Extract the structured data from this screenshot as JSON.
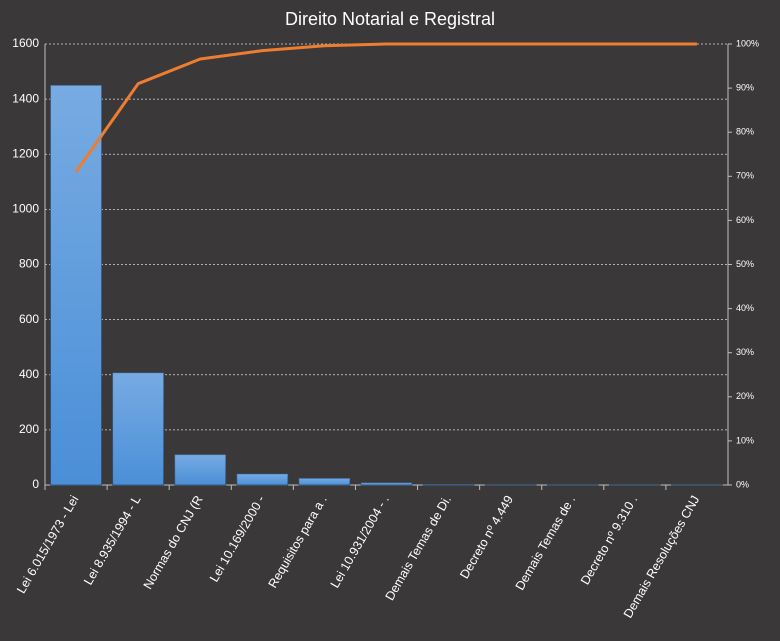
{
  "chart_data": {
    "type": "bar",
    "title": "Direito Notarial e Registral",
    "categories": [
      "Lei 6.015/1973 - Lei",
      "Lei 8.935/1994 - L",
      "Normas do CNJ (R",
      "Lei 10.169/2000 -",
      "Requisitos para a .",
      "Lei 10.931/2004 - .",
      "Demais Temas de Di.",
      "Decreto nº 4.449",
      "Demais Temas de .",
      "Decreto nº 9.310 .",
      "Demais Resoluções CNJ"
    ],
    "series": [
      {
        "type": "bar",
        "color": "#4a8fd8",
        "values": [
          1450,
          407,
          110,
          40,
          24,
          8,
          2,
          1,
          1,
          1,
          1
        ]
      },
      {
        "type": "line",
        "axis": "y2",
        "color": "#ed7d31",
        "values": [
          71,
          91,
          96.6,
          98.5,
          99.6,
          100,
          100,
          100,
          100,
          100,
          100
        ]
      }
    ],
    "ylim": [
      0,
      1600
    ],
    "yticks": [
      0,
      200,
      400,
      600,
      800,
      1000,
      1200,
      1400,
      1600
    ],
    "y2lim": [
      0,
      100
    ],
    "y2ticks": [
      {
        "value": 0,
        "label": "0%"
      },
      {
        "value": 10,
        "label": "10%"
      },
      {
        "value": 20,
        "label": "20%"
      },
      {
        "value": 30,
        "label": "30%"
      },
      {
        "value": 40,
        "label": "40%"
      },
      {
        "value": 50,
        "label": "50%"
      },
      {
        "value": 60,
        "label": "60%"
      },
      {
        "value": 70,
        "label": "70%"
      },
      {
        "value": 80,
        "label": "80%"
      },
      {
        "value": 90,
        "label": "90%"
      },
      {
        "value": 100,
        "label": "100%"
      }
    ],
    "grid": true
  }
}
